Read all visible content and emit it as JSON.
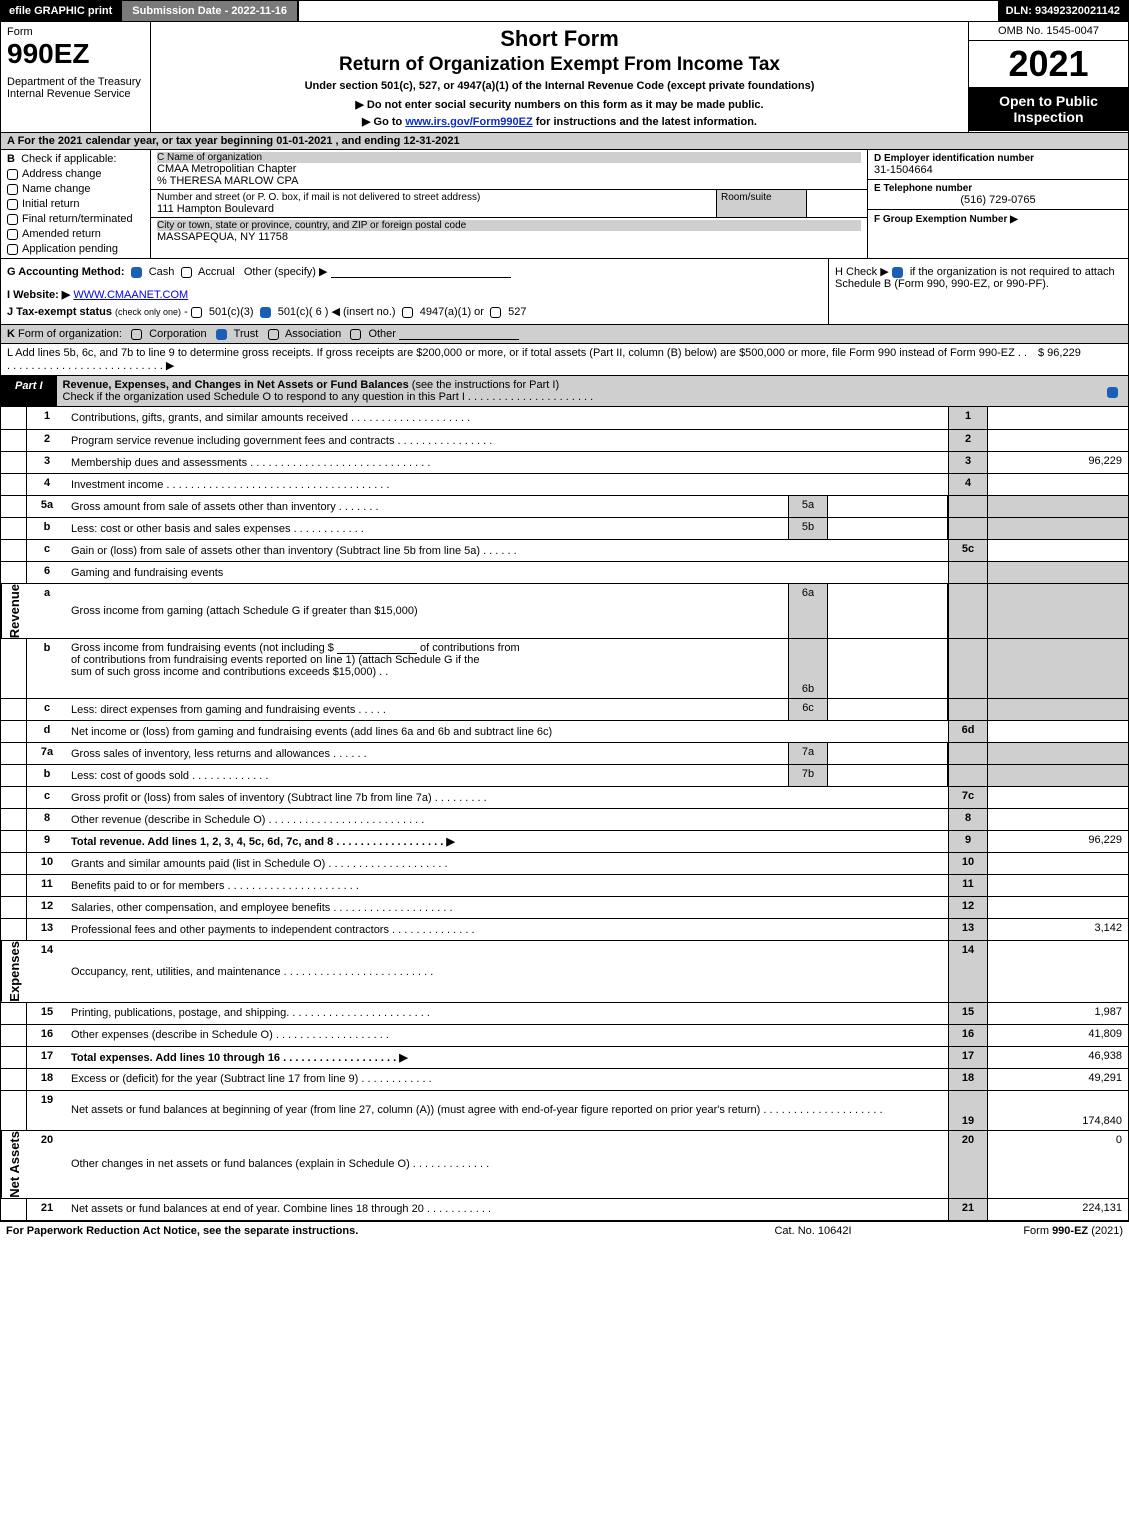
{
  "topbar": {
    "efile": "efile GRAPHIC print",
    "submission": "Submission Date - 2022-11-16",
    "dln": "DLN: 93492320021142"
  },
  "header": {
    "form_word": "Form",
    "form_no": "990EZ",
    "dept": "Department of the Treasury\nInternal Revenue Service",
    "title1": "Short Form",
    "title2": "Return of Organization Exempt From Income Tax",
    "subtitle": "Under section 501(c), 527, or 4947(a)(1) of the Internal Revenue Code (except private foundations)",
    "note1": "▶ Do not enter social security numbers on this form as it may be made public.",
    "note2_pre": "▶ Go to ",
    "note2_link": "www.irs.gov/Form990EZ",
    "note2_post": " for instructions and the latest information.",
    "omb": "OMB No. 1545-0047",
    "year": "2021",
    "open": "Open to Public Inspection"
  },
  "section_a": "A  For the 2021 calendar year, or tax year beginning 01-01-2021 , and ending 12-31-2021",
  "col_b": {
    "hdr": "B  Check if applicable:",
    "items": [
      "Address change",
      "Name change",
      "Initial return",
      "Final return/terminated",
      "Amended return",
      "Application pending"
    ]
  },
  "col_c": {
    "name_label": "C Name of organization",
    "name": "CMAA Metropolitian Chapter\n% THERESA MARLOW CPA",
    "street_label": "Number and street (or P. O. box, if mail is not delivered to street address)",
    "room_label": "Room/suite",
    "street": "111 Hampton Boulevard",
    "city_label": "City or town, state or province, country, and ZIP or foreign postal code",
    "city": "MASSAPEQUA, NY  11758"
  },
  "col_de": {
    "d_label": "D Employer identification number",
    "d_val": "31-1504664",
    "e_label": "E Telephone number",
    "e_val": "(516) 729-0765",
    "f_label": "F Group Exemption Number   ▶"
  },
  "row_g": {
    "label": "G Accounting Method:",
    "cash": "Cash",
    "accrual": "Accrual",
    "other": "Other (specify) ▶"
  },
  "row_h": {
    "pre": "H  Check ▶",
    "post": " if the organization is not required to attach Schedule B (Form 990, 990-EZ, or 990-PF)."
  },
  "row_i": {
    "label": "I Website: ▶",
    "val": "WWW.CMAANET.COM"
  },
  "row_j": "J Tax-exempt status (check only one) - ☐ 501(c)(3)  ☑ 501(c)( 6 ) ◀ (insert no.)  ☐ 4947(a)(1) or  ☐ 527",
  "row_k": "K Form of organization:   ☐ Corporation   ☑ Trust   ☐ Association   ☐ Other",
  "row_l": {
    "text": "L Add lines 5b, 6c, and 7b to line 9 to determine gross receipts. If gross receipts are $200,000 or more, or if total assets (Part II, column (B) below) are $500,000 or more, file Form 990 instead of Form 990-EZ  .  .  .  .  .  .  .  .  .  .  .  .  .  .  .  .  .  .  .  .  .  .  .  .  .  .  .  .  ▶",
    "amount": "$ 96,229"
  },
  "part1": {
    "tag": "Part I",
    "title_b": "Revenue, Expenses, and Changes in Net Assets or Fund Balances",
    "title_rest": " (see the instructions for Part I)",
    "sub": "Check if the organization used Schedule O to respond to any question in this Part I  .  .  .  .  .  .  .  .  .  .  .  .  .  .  .  .  .  .  .  .  ."
  },
  "sidebar": {
    "rev": "Revenue",
    "exp": "Expenses",
    "net": "Net Assets"
  },
  "revenue": [
    {
      "no": "1",
      "desc": "Contributions, gifts, grants, and similar amounts received  .  .  .  .  .  .  .  .  .  .  .  .  .  .  .  .  .  .  .  .",
      "num": "1",
      "val": ""
    },
    {
      "no": "2",
      "desc": "Program service revenue including government fees and contracts  .  .  .  .  .  .  .  .  .  .  .  .  .  .  .  .",
      "num": "2",
      "val": ""
    },
    {
      "no": "3",
      "desc": "Membership dues and assessments  .  .  .  .  .  .  .  .  .  .  .  .  .  .  .  .  .  .  .  .  .  .  .  .  .  .  .  .  .  .",
      "num": "3",
      "val": "96,229"
    },
    {
      "no": "4",
      "desc": "Investment income  .  .  .  .  .  .  .  .  .  .  .  .  .  .  .  .  .  .  .  .  .  .  .  .  .  .  .  .  .  .  .  .  .  .  .  .  .",
      "num": "4",
      "val": ""
    }
  ],
  "rev5": {
    "a_no": "5a",
    "a_desc": "Gross amount from sale of assets other than inventory  .  .  .  .  .  .  .",
    "a_sub": "5a",
    "b_no": "b",
    "b_desc": "Less: cost or other basis and sales expenses  .  .  .  .  .  .  .  .  .  .  .  .",
    "b_sub": "5b",
    "c_no": "c",
    "c_desc": "Gain or (loss) from sale of assets other than inventory (Subtract line 5b from line 5a)  .  .  .  .  .  .",
    "c_num": "5c"
  },
  "rev6": {
    "no": "6",
    "desc": "Gaming and fundraising events",
    "a_no": "a",
    "a_desc": "Gross income from gaming (attach Schedule G if greater than $15,000)",
    "a_sub": "6a",
    "b_no": "b",
    "b_desc1": "Gross income from fundraising events (not including $",
    "b_desc2": "of contributions from fundraising events reported on line 1) (attach Schedule G if the",
    "b_desc3": "sum of such gross income and contributions exceeds $15,000)    .   .",
    "b_sub": "6b",
    "c_no": "c",
    "c_desc": "Less: direct expenses from gaming and fundraising events   .  .  .  .  .",
    "c_sub": "6c",
    "d_no": "d",
    "d_desc": "Net income or (loss) from gaming and fundraising events (add lines 6a and 6b and subtract line 6c)",
    "d_num": "6d"
  },
  "rev7": {
    "a_no": "7a",
    "a_desc": "Gross sales of inventory, less returns and allowances  .  .  .  .  .  .",
    "a_sub": "7a",
    "b_no": "b",
    "b_desc": "Less: cost of goods sold           .   .   .   .   .   .   .   .   .   .   .   .   .",
    "b_sub": "7b",
    "c_no": "c",
    "c_desc": "Gross profit or (loss) from sales of inventory (Subtract line 7b from line 7a)  .  .  .  .  .  .  .  .  .",
    "c_num": "7c"
  },
  "rev89": [
    {
      "no": "8",
      "desc": "Other revenue (describe in Schedule O)  .  .  .  .  .  .  .  .  .  .  .  .  .  .  .  .  .  .  .  .  .  .  .  .  .  .",
      "num": "8",
      "val": ""
    },
    {
      "no": "9",
      "desc": "Total revenue. Add lines 1, 2, 3, 4, 5c, 6d, 7c, and 8   .  .  .  .  .  .  .  .  .  .  .  .  .  .  .  .  .  .           ▶",
      "num": "9",
      "val": "96,229",
      "bold": true
    }
  ],
  "expenses": [
    {
      "no": "10",
      "desc": "Grants and similar amounts paid (list in Schedule O)  .  .  .  .  .  .  .  .  .  .  .  .  .  .  .  .  .  .  .  .",
      "num": "10",
      "val": ""
    },
    {
      "no": "11",
      "desc": "Benefits paid to or for members        .   .   .   .   .   .   .   .   .   .   .   .   .   .   .   .   .   .   .   .   .   .",
      "num": "11",
      "val": ""
    },
    {
      "no": "12",
      "desc": "Salaries, other compensation, and employee benefits .  .  .  .  .  .  .  .  .  .  .  .  .  .  .  .  .  .  .  .",
      "num": "12",
      "val": ""
    },
    {
      "no": "13",
      "desc": "Professional fees and other payments to independent contractors  .  .  .  .  .  .  .  .  .  .  .  .  .  .",
      "num": "13",
      "val": "3,142"
    },
    {
      "no": "14",
      "desc": "Occupancy, rent, utilities, and maintenance .  .  .  .  .  .  .  .  .  .  .  .  .  .  .  .  .  .  .  .  .  .  .  .  .",
      "num": "14",
      "val": ""
    },
    {
      "no": "15",
      "desc": "Printing, publications, postage, and shipping.  .  .  .  .  .  .  .  .  .  .  .  .  .  .  .  .  .  .  .  .  .  .  .",
      "num": "15",
      "val": "1,987"
    },
    {
      "no": "16",
      "desc": "Other expenses (describe in Schedule O)       .   .   .   .   .   .   .   .   .   .   .   .   .   .   .   .   .   .   .",
      "num": "16",
      "val": "41,809"
    },
    {
      "no": "17",
      "desc": "Total expenses. Add lines 10 through 16       .   .   .   .   .   .   .   .   .   .   .   .   .   .   .   .   .   .   .    ▶",
      "num": "17",
      "val": "46,938",
      "bold": true
    }
  ],
  "netassets": [
    {
      "no": "18",
      "desc": "Excess or (deficit) for the year (Subtract line 17 from line 9)        .   .   .   .   .   .   .   .   .   .   .   .",
      "num": "18",
      "val": "49,291"
    },
    {
      "no": "19",
      "desc": "Net assets or fund balances at beginning of year (from line 27, column (A)) (must agree with end-of-year figure reported on prior year's return)  .  .  .  .  .  .  .  .  .  .  .  .  .  .  .  .  .  .  .  .",
      "num": "19",
      "val": "174,840",
      "double": true
    },
    {
      "no": "20",
      "desc": "Other changes in net assets or fund balances (explain in Schedule O) .  .  .  .  .  .  .  .  .  .  .  .  .",
      "num": "20",
      "val": "0"
    },
    {
      "no": "21",
      "desc": "Net assets or fund balances at end of year. Combine lines 18 through 20 .  .  .  .  .  .  .  .  .  .  .",
      "num": "21",
      "val": "224,131"
    }
  ],
  "footer": {
    "left": "For Paperwork Reduction Act Notice, see the separate instructions.",
    "mid": "Cat. No. 10642I",
    "right": "Form 990-EZ (2021)"
  }
}
